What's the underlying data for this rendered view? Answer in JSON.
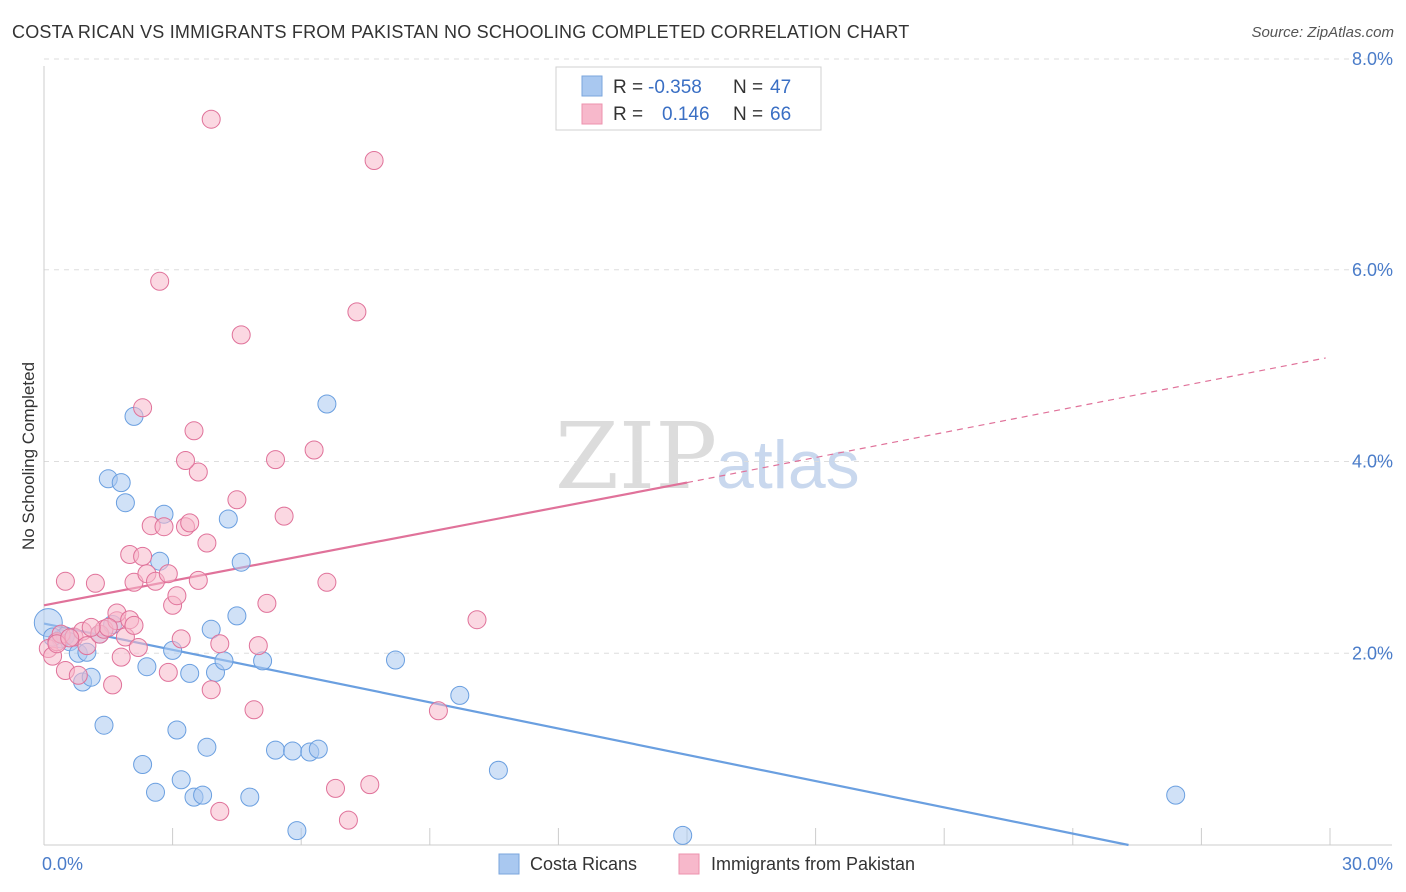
{
  "header": {
    "title": "COSTA RICAN VS IMMIGRANTS FROM PAKISTAN NO SCHOOLING COMPLETED CORRELATION CHART",
    "source": "Source: ZipAtlas.com"
  },
  "watermark": {
    "zip": "ZIP",
    "atlas": "atlas"
  },
  "legend": {
    "rows": [
      {
        "r_label": "R =",
        "r_value": "-0.358",
        "n_label": "N =",
        "n_value": "47",
        "color": "#a9c8f0"
      },
      {
        "r_label": "R =",
        "r_value": "0.146",
        "n_label": "N =",
        "n_value": "66",
        "color": "#f7b8cb"
      }
    ]
  },
  "bottom_legend": {
    "items": [
      {
        "label": "Costa Ricans",
        "color": "#a9c8f0"
      },
      {
        "label": "Immigrants from Pakistan",
        "color": "#f7b8cb"
      }
    ]
  },
  "chart_data": {
    "type": "scatter",
    "title": "COSTA RICAN VS IMMIGRANTS FROM PAKISTAN NO SCHOOLING COMPLETED CORRELATION CHART",
    "xlabel": "",
    "ylabel": "No Schooling Completed",
    "xlim": [
      0,
      30
    ],
    "ylim": [
      0,
      8
    ],
    "x_tick_labels": [
      "0.0%",
      "30.0%"
    ],
    "y_ticks": [
      2,
      4,
      6,
      8
    ],
    "y_tick_labels": [
      "2.0%",
      "4.0%",
      "6.0%",
      "8.0%"
    ],
    "grid": true,
    "series": [
      {
        "name": "Costa Ricans",
        "color": "#6a9fe0",
        "fill": "#a9c8f0",
        "trend": {
          "x0": 0,
          "y0": 2.31,
          "x1": 25.3,
          "y1": 0.0,
          "dashed_to": null
        },
        "points": [
          [
            0.1,
            2.32
          ],
          [
            0.4,
            2.15
          ],
          [
            0.5,
            2.18
          ],
          [
            0.6,
            2.12
          ],
          [
            0.8,
            2.0
          ],
          [
            0.9,
            1.7
          ],
          [
            1.0,
            2.01
          ],
          [
            1.1,
            1.75
          ],
          [
            1.3,
            2.2
          ],
          [
            1.4,
            1.25
          ],
          [
            1.5,
            3.82
          ],
          [
            1.6,
            2.3
          ],
          [
            1.8,
            3.78
          ],
          [
            1.9,
            3.57
          ],
          [
            2.1,
            4.47
          ],
          [
            2.3,
            0.84
          ],
          [
            2.4,
            1.86
          ],
          [
            2.6,
            0.55
          ],
          [
            2.7,
            2.96
          ],
          [
            2.8,
            3.45
          ],
          [
            3.0,
            2.03
          ],
          [
            3.1,
            1.2
          ],
          [
            3.2,
            0.68
          ],
          [
            3.4,
            1.79
          ],
          [
            3.5,
            0.5
          ],
          [
            3.7,
            0.52
          ],
          [
            3.8,
            1.02
          ],
          [
            3.9,
            2.25
          ],
          [
            4.0,
            1.8
          ],
          [
            4.2,
            1.92
          ],
          [
            4.3,
            3.4
          ],
          [
            4.5,
            2.39
          ],
          [
            4.6,
            2.95
          ],
          [
            4.8,
            0.5
          ],
          [
            5.1,
            1.92
          ],
          [
            5.4,
            0.99
          ],
          [
            5.8,
            0.98
          ],
          [
            5.9,
            0.15
          ],
          [
            6.2,
            0.97
          ],
          [
            6.4,
            1.0
          ],
          [
            6.6,
            4.6
          ],
          [
            8.2,
            1.93
          ],
          [
            9.7,
            1.56
          ],
          [
            10.6,
            0.78
          ],
          [
            14.9,
            0.1
          ],
          [
            26.4,
            0.52
          ],
          [
            0.2,
            2.17
          ]
        ]
      },
      {
        "name": "Immigrants from Pakistan",
        "color": "#e0729a",
        "fill": "#f7b8cb",
        "trend": {
          "x0": 0,
          "y0": 2.5,
          "x1": 15.0,
          "y1": 3.78,
          "dashed_to": [
            29.9,
            5.08
          ]
        },
        "points": [
          [
            0.1,
            2.05
          ],
          [
            0.2,
            1.97
          ],
          [
            0.3,
            2.12
          ],
          [
            0.4,
            2.2
          ],
          [
            0.5,
            1.82
          ],
          [
            0.5,
            2.75
          ],
          [
            0.7,
            2.17
          ],
          [
            0.8,
            1.77
          ],
          [
            0.9,
            2.23
          ],
          [
            1.0,
            2.08
          ],
          [
            1.2,
            2.73
          ],
          [
            1.3,
            2.2
          ],
          [
            1.4,
            2.25
          ],
          [
            1.6,
            1.67
          ],
          [
            1.7,
            2.34
          ],
          [
            1.7,
            2.42
          ],
          [
            1.8,
            1.96
          ],
          [
            1.9,
            2.17
          ],
          [
            2.0,
            3.03
          ],
          [
            2.0,
            2.35
          ],
          [
            2.1,
            2.74
          ],
          [
            2.2,
            2.06
          ],
          [
            2.3,
            3.01
          ],
          [
            2.3,
            4.56
          ],
          [
            2.4,
            2.83
          ],
          [
            2.5,
            3.33
          ],
          [
            2.6,
            2.75
          ],
          [
            2.7,
            5.88
          ],
          [
            2.8,
            3.32
          ],
          [
            2.9,
            1.8
          ],
          [
            2.9,
            2.83
          ],
          [
            3.0,
            2.5
          ],
          [
            3.1,
            2.6
          ],
          [
            3.2,
            2.15
          ],
          [
            3.3,
            3.32
          ],
          [
            3.4,
            3.36
          ],
          [
            3.5,
            4.32
          ],
          [
            3.6,
            2.76
          ],
          [
            3.6,
            3.89
          ],
          [
            3.8,
            3.15
          ],
          [
            3.9,
            1.62
          ],
          [
            3.9,
            7.57
          ],
          [
            4.1,
            2.1
          ],
          [
            4.1,
            0.35
          ],
          [
            4.5,
            3.6
          ],
          [
            4.6,
            5.32
          ],
          [
            4.9,
            1.41
          ],
          [
            5.0,
            2.08
          ],
          [
            5.2,
            2.52
          ],
          [
            5.4,
            4.02
          ],
          [
            5.6,
            3.43
          ],
          [
            6.3,
            4.12
          ],
          [
            6.6,
            2.74
          ],
          [
            6.8,
            0.59
          ],
          [
            7.1,
            0.26
          ],
          [
            7.3,
            5.56
          ],
          [
            7.6,
            0.63
          ],
          [
            7.7,
            7.14
          ],
          [
            9.2,
            1.4
          ],
          [
            10.1,
            2.35
          ],
          [
            0.3,
            2.1
          ],
          [
            1.5,
            2.27
          ],
          [
            2.1,
            2.29
          ],
          [
            3.3,
            4.01
          ],
          [
            0.6,
            2.16
          ],
          [
            1.1,
            2.27
          ]
        ]
      }
    ]
  }
}
